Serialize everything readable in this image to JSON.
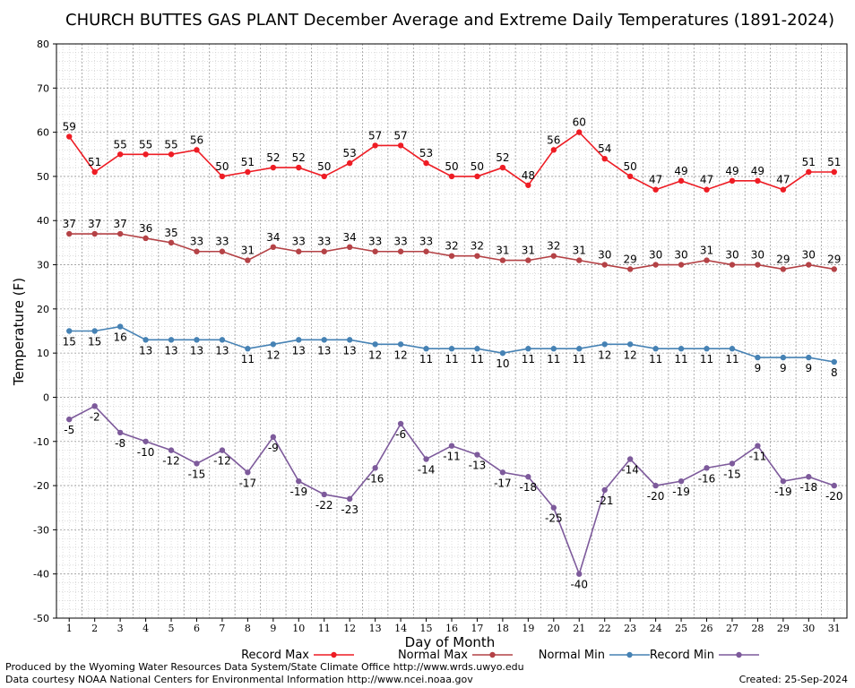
{
  "chart_data": {
    "type": "line",
    "title": "CHURCH BUTTES GAS PLANT December Average and Extreme Daily Temperatures (1891-2024)",
    "xlabel": "Day of Month",
    "ylabel": "Temperature (F)",
    "x": [
      1,
      2,
      3,
      4,
      5,
      6,
      7,
      8,
      9,
      10,
      11,
      12,
      13,
      14,
      15,
      16,
      17,
      18,
      19,
      20,
      21,
      22,
      23,
      24,
      25,
      26,
      27,
      28,
      29,
      30,
      31
    ],
    "xlim": [
      0.5,
      31.5
    ],
    "ylim": [
      -50,
      80
    ],
    "yticks": [
      -50,
      -40,
      -30,
      -20,
      -10,
      0,
      10,
      20,
      30,
      40,
      50,
      60,
      70,
      80
    ],
    "grid": true,
    "legend_position": "bottom",
    "series": [
      {
        "name": "Record Max",
        "color": "#ee1c24",
        "label_position": "above",
        "values": [
          59,
          51,
          55,
          55,
          55,
          56,
          50,
          51,
          52,
          52,
          50,
          53,
          57,
          57,
          53,
          50,
          50,
          52,
          48,
          56,
          60,
          54,
          50,
          47,
          49,
          47,
          49,
          49,
          47,
          51,
          51
        ]
      },
      {
        "name": "Normal Max",
        "color": "#b44246",
        "label_position": "above",
        "values": [
          37,
          37,
          37,
          36,
          35,
          33,
          33,
          31,
          34,
          33,
          33,
          34,
          33,
          33,
          33,
          32,
          32,
          31,
          31,
          32,
          31,
          30,
          29,
          30,
          30,
          31,
          30,
          30,
          29,
          30,
          29
        ]
      },
      {
        "name": "Normal Min",
        "color": "#4682b4",
        "label_position": "below",
        "values": [
          15,
          15,
          16,
          13,
          13,
          13,
          13,
          11,
          12,
          13,
          13,
          13,
          12,
          12,
          11,
          11,
          11,
          10,
          11,
          11,
          11,
          12,
          12,
          11,
          11,
          11,
          11,
          9,
          9,
          9,
          8
        ]
      },
      {
        "name": "Record Min",
        "color": "#7d5a9b",
        "label_position": "below",
        "values": [
          -5,
          -2,
          -8,
          -10,
          -12,
          -15,
          -12,
          -17,
          -9,
          -19,
          -22,
          -23,
          -16,
          -6,
          -14,
          -11,
          -13,
          -17,
          -18,
          -25,
          -40,
          -21,
          -14,
          -20,
          -19,
          -16,
          -15,
          -11,
          -19,
          -18,
          -20
        ]
      }
    ]
  },
  "footer": {
    "credit_line_1": "Produced by the Wyoming Water Resources Data System/State Climate Office http://www.wrds.uwyo.edu",
    "credit_line_2": "Data courtesy NOAA National Centers for Environmental Information http://www.ncei.noaa.gov",
    "created": "Created:  25-Sep-2024"
  }
}
